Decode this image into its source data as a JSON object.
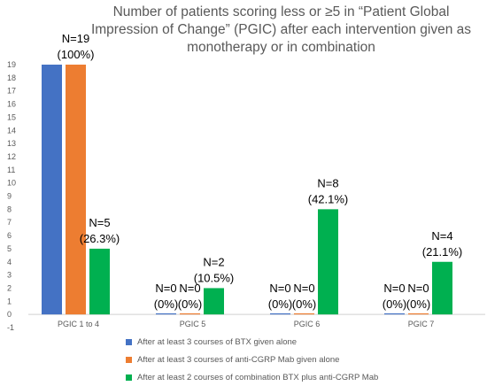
{
  "chart_data": {
    "type": "bar",
    "title": "Number of patients scoring less or ≥5 in “Patient Global Impression of Change” (PGIC) after each intervention given as monotherapy or in combination",
    "categories": [
      "PGIC 1 to 4",
      "PGIC 5",
      "PGIC 6",
      "PGIC 7"
    ],
    "series": [
      {
        "name": "After at least 3 courses of BTX given alone",
        "color": "#4472C4",
        "values": [
          19,
          0,
          0,
          0
        ],
        "labels": [
          "",
          "N=0 (0%)",
          "N=0 (0%)",
          "N=0 (0%)"
        ]
      },
      {
        "name": "After at least 3 courses of anti-CGRP Mab given alone",
        "color": "#ED7D31",
        "values": [
          19,
          0,
          0,
          0
        ],
        "labels": [
          "N=19 (100%)",
          "N=0 (0%)",
          "N=0 (0%)",
          "N=0 (0%)"
        ]
      },
      {
        "name": "After at least 2 courses of combination BTX plus anti-CGRP Mab",
        "color": "#00B050",
        "values": [
          5,
          2,
          8,
          4
        ],
        "labels": [
          "N=5 (26.3%)",
          "N=2 (10.5%)",
          "N=8 (42.1%)",
          "N=4 (21.1%)"
        ]
      }
    ],
    "ylim": [
      -1,
      19
    ],
    "yticks": [
      -1,
      0,
      1,
      2,
      3,
      4,
      5,
      6,
      7,
      8,
      9,
      10,
      11,
      12,
      13,
      14,
      15,
      16,
      17,
      18,
      19
    ],
    "xlabel": "",
    "ylabel": "",
    "grid": false,
    "legend_position": "bottom"
  }
}
